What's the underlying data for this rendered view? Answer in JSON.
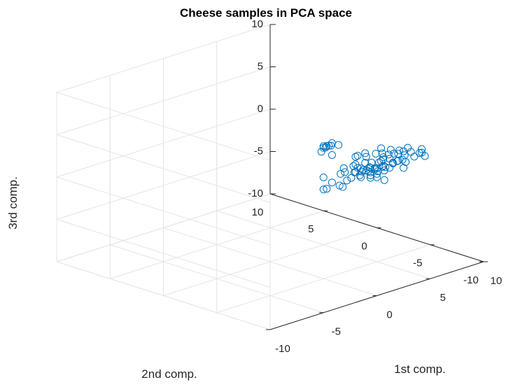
{
  "chart_data": {
    "type": "scatter",
    "title": "Cheese samples in PCA space",
    "xlabel": "1st comp.",
    "ylabel": "2nd comp.",
    "zlabel": "3rd comp.",
    "xlim": [
      -10,
      10
    ],
    "ylim": [
      -10,
      10
    ],
    "zlim": [
      -10,
      10
    ],
    "xticks": [
      "-10",
      "-5",
      "0",
      "5",
      "10"
    ],
    "yticks": [
      "-10",
      "-5",
      "0",
      "5",
      "10"
    ],
    "zticks": [
      "-10",
      "-5",
      "0",
      "5",
      "10"
    ],
    "grid": true,
    "marker": "circle",
    "color": "#0072BD",
    "points": [
      {
        "x": 7.0,
        "y": 1.5,
        "z": 0.3
      },
      {
        "x": 6.8,
        "y": 1.8,
        "z": 0.2
      },
      {
        "x": 7.4,
        "y": 1.6,
        "z": 0.4
      },
      {
        "x": 7.2,
        "y": 2.0,
        "z": -0.2
      },
      {
        "x": 6.6,
        "y": 1.3,
        "z": 0.5
      },
      {
        "x": 7.6,
        "y": 1.9,
        "z": -0.1
      },
      {
        "x": 6.9,
        "y": 1.1,
        "z": -0.6
      },
      {
        "x": 7.3,
        "y": 2.3,
        "z": -0.4
      },
      {
        "x": 6.5,
        "y": 1.7,
        "z": -0.3
      },
      {
        "x": 7.8,
        "y": 1.4,
        "z": 0.1
      },
      {
        "x": 2.0,
        "y": -6.0,
        "z": 4.0
      },
      {
        "x": 2.6,
        "y": -6.3,
        "z": 4.3
      },
      {
        "x": 2.5,
        "y": -5.7,
        "z": 3.8
      },
      {
        "x": 4.0,
        "y": -4.0,
        "z": 1.5
      },
      {
        "x": 3.5,
        "y": -4.5,
        "z": 1.0
      },
      {
        "x": 3.4,
        "y": -3.2,
        "z": 0.3
      },
      {
        "x": 4.0,
        "y": -2.9,
        "z": 0.6
      },
      {
        "x": 3.6,
        "y": -3.6,
        "z": -0.4
      },
      {
        "x": 4.4,
        "y": -3.4,
        "z": 0.9
      },
      {
        "x": 3.0,
        "y": -3.5,
        "z": -0.8
      },
      {
        "x": 4.6,
        "y": -2.4,
        "z": -0.3
      },
      {
        "x": 2.8,
        "y": -2.5,
        "z": -1.5
      },
      {
        "x": 3.6,
        "y": -2.2,
        "z": -1.2
      },
      {
        "x": 4.2,
        "y": -2.6,
        "z": -1.8
      },
      {
        "x": 3.2,
        "y": -1.8,
        "z": -0.6
      },
      {
        "x": 2.3,
        "y": -2.7,
        "z": -1.3
      },
      {
        "x": 6.5,
        "y": -5.0,
        "z": 1.0
      },
      {
        "x": 6.8,
        "y": -5.2,
        "z": 1.3
      },
      {
        "x": 6.0,
        "y": -4.8,
        "z": 0.7
      },
      {
        "x": 7.2,
        "y": -5.5,
        "z": 1.1
      },
      {
        "x": 6.3,
        "y": -5.6,
        "z": 1.6
      },
      {
        "x": 6.0,
        "y": -5.1,
        "z": 2.3
      },
      {
        "x": 5.8,
        "y": -5.4,
        "z": 2.0
      },
      {
        "x": 5.5,
        "y": -4.7,
        "z": 1.4
      },
      {
        "x": 5.7,
        "y": -5.0,
        "z": 0.5
      },
      {
        "x": 5.2,
        "y": -4.6,
        "z": 0.8
      },
      {
        "x": 5.3,
        "y": -5.1,
        "z": 1.8
      },
      {
        "x": 5.0,
        "y": -4.5,
        "z": 1.5
      },
      {
        "x": 4.9,
        "y": -4.9,
        "z": 0.9
      },
      {
        "x": 6.2,
        "y": -4.4,
        "z": 0.6
      },
      {
        "x": 6.6,
        "y": -4.6,
        "z": 0.3
      },
      {
        "x": 4.7,
        "y": -4.3,
        "z": 0.6
      },
      {
        "x": 4.8,
        "y": -5.2,
        "z": 1.2
      },
      {
        "x": 4.5,
        "y": -4.8,
        "z": 1.3
      },
      {
        "x": 4.6,
        "y": -4.0,
        "z": 0.4
      },
      {
        "x": 4.4,
        "y": -4.3,
        "z": 0.8
      },
      {
        "x": 4.3,
        "y": -4.6,
        "z": 1.8
      },
      {
        "x": 4.2,
        "y": -4.0,
        "z": 1.0
      },
      {
        "x": 4.1,
        "y": -4.4,
        "z": 0.1
      },
      {
        "x": 5.1,
        "y": -4.1,
        "z": 0.3
      },
      {
        "x": 5.4,
        "y": -4.0,
        "z": 0.0
      },
      {
        "x": 5.6,
        "y": -4.4,
        "z": -0.5
      },
      {
        "x": 5.9,
        "y": -4.8,
        "z": -0.8
      },
      {
        "x": 5.5,
        "y": -5.0,
        "z": 2.6
      },
      {
        "x": 6.9,
        "y": -4.7,
        "z": 1.9
      },
      {
        "x": 7.1,
        "y": -5.0,
        "z": 2.3
      },
      {
        "x": 7.4,
        "y": -5.2,
        "z": 1.7
      },
      {
        "x": 6.7,
        "y": -5.3,
        "z": 2.2
      },
      {
        "x": 7.5,
        "y": -4.9,
        "z": 1.0
      },
      {
        "x": 7.0,
        "y": -4.5,
        "z": 0.7
      },
      {
        "x": 5.2,
        "y": -4.2,
        "z": -0.2
      },
      {
        "x": 4.7,
        "y": -3.7,
        "z": -0.2
      },
      {
        "x": 4.9,
        "y": -3.6,
        "z": 0.5
      },
      {
        "x": 3.9,
        "y": -4.0,
        "z": 0.6
      },
      {
        "x": 3.8,
        "y": -3.8,
        "z": -0.1
      },
      {
        "x": 5.6,
        "y": -3.8,
        "z": -0.8
      },
      {
        "x": 6.1,
        "y": -3.9,
        "z": -0.5
      },
      {
        "x": 5.9,
        "y": -4.2,
        "z": 0.0
      },
      {
        "x": 5.8,
        "y": -3.6,
        "z": 0.2
      },
      {
        "x": 6.4,
        "y": -4.2,
        "z": 1.2
      },
      {
        "x": 6.5,
        "y": -4.0,
        "z": 0.2
      },
      {
        "x": 6.1,
        "y": -4.5,
        "z": 1.7
      },
      {
        "x": 5.0,
        "y": -4.0,
        "z": 2.0
      },
      {
        "x": 5.4,
        "y": -4.5,
        "z": 2.4
      },
      {
        "x": 5.7,
        "y": -4.7,
        "z": 3.0
      },
      {
        "x": 6.3,
        "y": -5.0,
        "z": 2.7
      },
      {
        "x": 6.8,
        "y": -5.7,
        "z": 2.6
      },
      {
        "x": 7.3,
        "y": -5.9,
        "z": 2.4
      },
      {
        "x": 7.8,
        "y": -6.2,
        "z": 2.2
      },
      {
        "x": 8.2,
        "y": -6.0,
        "z": 2.0
      },
      {
        "x": 8.1,
        "y": -6.4,
        "z": 1.8
      },
      {
        "x": 7.9,
        "y": -5.6,
        "z": 1.5
      },
      {
        "x": 7.6,
        "y": -6.6,
        "z": 2.9
      },
      {
        "x": 6.9,
        "y": -6.0,
        "z": 3.1
      },
      {
        "x": 7.1,
        "y": -5.4,
        "z": 0.4
      }
    ]
  }
}
